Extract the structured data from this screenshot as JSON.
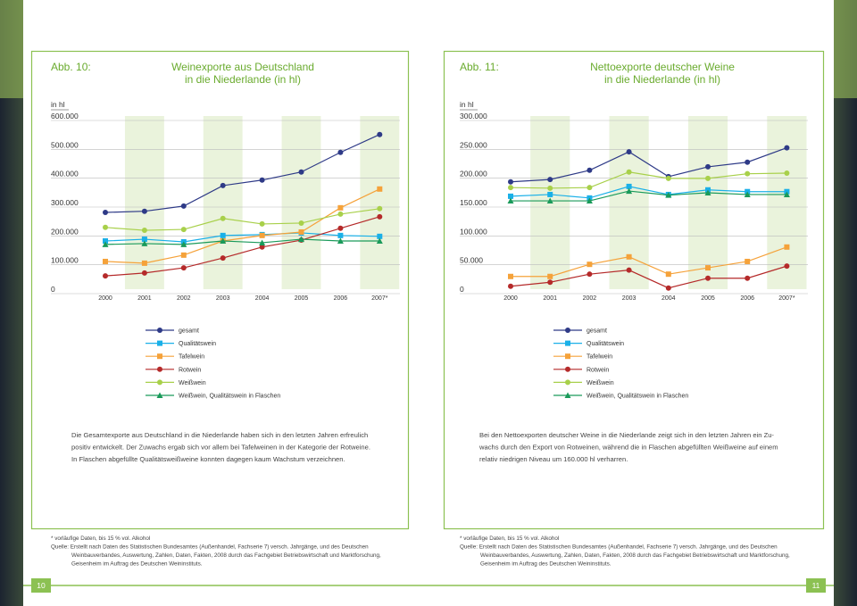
{
  "chart_data": [
    {
      "type": "line",
      "figure_label": "Abb. 10:",
      "title": [
        "Weinexporte aus Deutschland",
        "in die Niederlande (in hl)"
      ],
      "y_label": "in hl",
      "categories": [
        "2000",
        "2001",
        "2002",
        "2003",
        "2004",
        "2005",
        "2006",
        "2007*"
      ],
      "ylim": [
        0,
        600000
      ],
      "yticks": [
        0,
        {
          "value": 100000,
          "label": "100.000"
        },
        {
          "value": 200000,
          "label": "200.000"
        },
        {
          "value": 300000,
          "label": "300.000"
        },
        {
          "value": 400000,
          "label": "400.000"
        },
        {
          "value": 500000,
          "label": "500.000"
        },
        {
          "value": 600000,
          "label": "600.000"
        }
      ],
      "series": [
        {
          "name": "gesamt",
          "color": "#2e3a87",
          "marker": "circle",
          "values": [
            266000,
            270000,
            288000,
            359000,
            378000,
            406000,
            474000,
            536000
          ]
        },
        {
          "name": "Qualitätswein",
          "color": "#1ab0e8",
          "marker": "square",
          "values": [
            167000,
            173000,
            164000,
            186000,
            189000,
            195000,
            186000,
            183000
          ]
        },
        {
          "name": "Tafelwein",
          "color": "#f5a23a",
          "marker": "square",
          "values": [
            96000,
            90000,
            118000,
            167000,
            186000,
            198000,
            282000,
            347000
          ]
        },
        {
          "name": "Rotwein",
          "color": "#b52a2a",
          "marker": "circle",
          "values": [
            46000,
            56000,
            74000,
            108000,
            146000,
            170000,
            211000,
            251000
          ]
        },
        {
          "name": "Weißwein",
          "color": "#a8d04a",
          "marker": "circle",
          "values": [
            214000,
            204000,
            207000,
            245000,
            226000,
            229000,
            260000,
            279000
          ]
        },
        {
          "name": "Weißwein, Qualitätswein in Flaschen",
          "color": "#1a9a5a",
          "marker": "triangle",
          "values": [
            155000,
            158000,
            155000,
            167000,
            161000,
            173000,
            167000,
            167000
          ]
        }
      ]
    },
    {
      "type": "line",
      "figure_label": "Abb. 11:",
      "title": [
        "Nettoexporte deutscher Weine",
        "in die Niederlande (in hl)"
      ],
      "y_label": "in hl",
      "categories": [
        "2000",
        "2001",
        "2002",
        "2003",
        "2004",
        "2005",
        "2006",
        "2007*"
      ],
      "ylim": [
        0,
        300000
      ],
      "yticks": [
        0,
        {
          "value": 50000,
          "label": "50.000"
        },
        {
          "value": 100000,
          "label": "100.000"
        },
        {
          "value": 150000,
          "label": "150.000"
        },
        {
          "value": 200000,
          "label": "200.000"
        },
        {
          "value": 250000,
          "label": "250.000"
        },
        {
          "value": 300000,
          "label": "300.000"
        }
      ],
      "series": [
        {
          "name": "gesamt",
          "color": "#2e3a87",
          "marker": "circle",
          "values": [
            186000,
            190000,
            206000,
            238000,
            195000,
            212000,
            220000,
            245000
          ]
        },
        {
          "name": "Qualitätswein",
          "color": "#1ab0e8",
          "marker": "square",
          "values": [
            161000,
            164000,
            158000,
            178000,
            164000,
            172000,
            169000,
            169000
          ]
        },
        {
          "name": "Tafelwein",
          "color": "#f5a23a",
          "marker": "square",
          "values": [
            22000,
            22000,
            43000,
            56000,
            26000,
            37000,
            48000,
            73000
          ]
        },
        {
          "name": "Rotwein",
          "color": "#b52a2a",
          "marker": "circle",
          "values": [
            5000,
            12000,
            26000,
            33000,
            2000,
            19000,
            19000,
            40000
          ]
        },
        {
          "name": "Weißwein",
          "color": "#a8d04a",
          "marker": "circle",
          "values": [
            176000,
            175000,
            176000,
            203000,
            192000,
            192000,
            200000,
            201000
          ]
        },
        {
          "name": "Weißwein, Qualitätswein in Flaschen",
          "color": "#1a9a5a",
          "marker": "triangle",
          "values": [
            153000,
            153000,
            153000,
            170000,
            163000,
            167000,
            164000,
            164000
          ]
        }
      ]
    }
  ],
  "pages": [
    {
      "page_number": 10,
      "text": [
        "Die Gesamtexporte aus Deutschland in die Niederlande haben sich in den letzten Jahren erfreulich",
        "positiv entwickelt. Der Zuwachs ergab sich vor allem bei Tafelweinen in der Kategorie der Rotweine.",
        "In Flaschen abgefüllte Qualitätsweißweine konnten dagegen kaum Wachstum verzeichnen."
      ],
      "footnotes": [
        "*  vorläufige Daten, bis 15 % vol. Alkohol",
        "Quelle: Erstellt nach Daten des Statistischen Bundesamtes (Außenhandel, Fachserie 7) versch. Jahrgänge, und des Deutschen",
        "Weinbauverbandes, Auswertung, Zahlen, Daten, Fakten, 2008 durch das Fachgebiet Betriebswirtschaft und Marktforschung,",
        "Geisenheim im Auftrag des Deutschen Weininstituts."
      ]
    },
    {
      "page_number": 11,
      "text": [
        "Bei den Nettoexporten deutscher Weine in die Niederlande zeigt sich in den letzten Jahren ein Zu-",
        "wachs durch den Export von Rotweinen, während die in Flaschen abgefüllten Weißweine auf einem",
        "relativ niedrigen Niveau um 160.000 hl verharren."
      ],
      "footnotes": [
        "*  vorläufige Daten, bis 15 % vol. Alkohol",
        "Quelle: Erstellt nach Daten des Statistischen Bundesamtes (Außenhandel, Fachserie 7) versch. Jahrgänge, und des Deutschen",
        "Weinbauverbandes, Auswertung, Zahlen, Daten, Fakten, 2008 durch das Fachgebiet Betriebswirtschaft und Marktforschung,",
        "Geisenheim im Auftrag des Deutschen Weininstituts."
      ]
    }
  ]
}
